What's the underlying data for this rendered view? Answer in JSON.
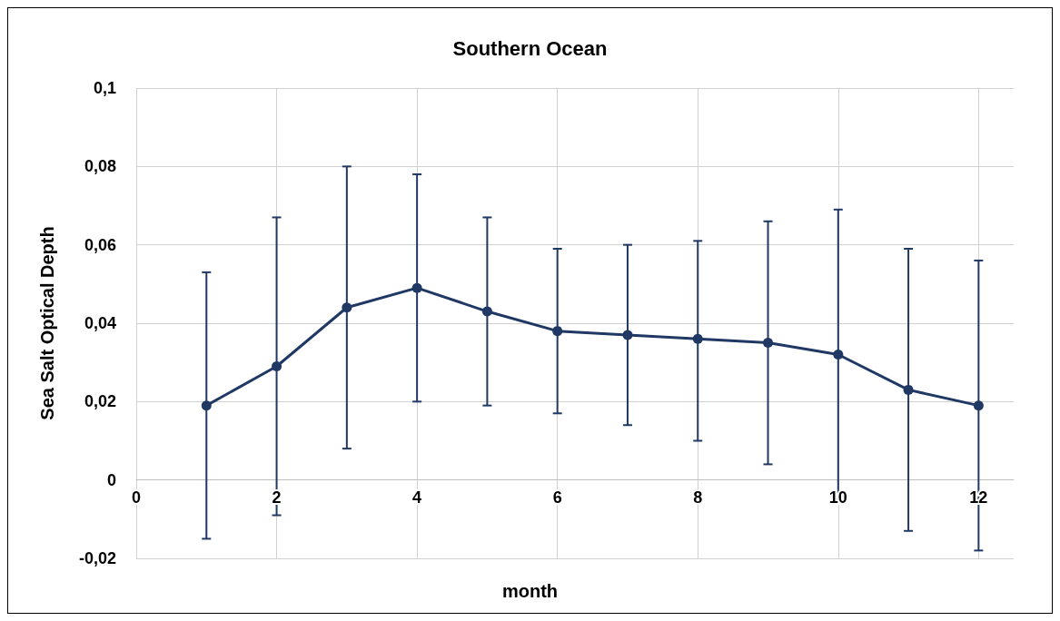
{
  "chart_data": {
    "type": "line",
    "title": "Southern Ocean",
    "xlabel": "month",
    "ylabel": "Sea Salt Optical Depth",
    "x": [
      1,
      2,
      3,
      4,
      5,
      6,
      7,
      8,
      9,
      10,
      11,
      12
    ],
    "series": [
      {
        "color": "#203864",
        "values": [
          0.019,
          0.029,
          0.044,
          0.049,
          0.043,
          0.038,
          0.037,
          0.036,
          0.035,
          0.032,
          0.023,
          0.019
        ],
        "errors": [
          [
            -0.015,
            0.053
          ],
          [
            -0.009,
            0.067
          ],
          [
            0.008,
            0.08
          ],
          [
            0.02,
            0.078
          ],
          [
            0.019,
            0.067
          ],
          [
            0.017,
            0.059
          ],
          [
            0.014,
            0.06
          ],
          [
            0.01,
            0.061
          ],
          [
            0.004,
            0.066
          ],
          [
            -0.005,
            0.069
          ],
          [
            -0.013,
            0.059
          ],
          [
            -0.018,
            0.056
          ]
        ]
      }
    ],
    "xlim": [
      0,
      12.5
    ],
    "xticks": [
      0,
      2,
      4,
      6,
      8,
      10,
      12
    ],
    "ylim": [
      -0.02,
      0.1
    ],
    "yticks": [
      {
        "value": -0.02,
        "label": "-0,02"
      },
      {
        "value": 0,
        "label": "0"
      },
      {
        "value": 0.02,
        "label": "0,02"
      },
      {
        "value": 0.04,
        "label": "0,04"
      },
      {
        "value": 0.06,
        "label": "0,06"
      },
      {
        "value": 0.08,
        "label": "0,08"
      },
      {
        "value": 0.1,
        "label": "0,1"
      }
    ],
    "grid": true,
    "marker": "circle",
    "line_style": "solid"
  }
}
